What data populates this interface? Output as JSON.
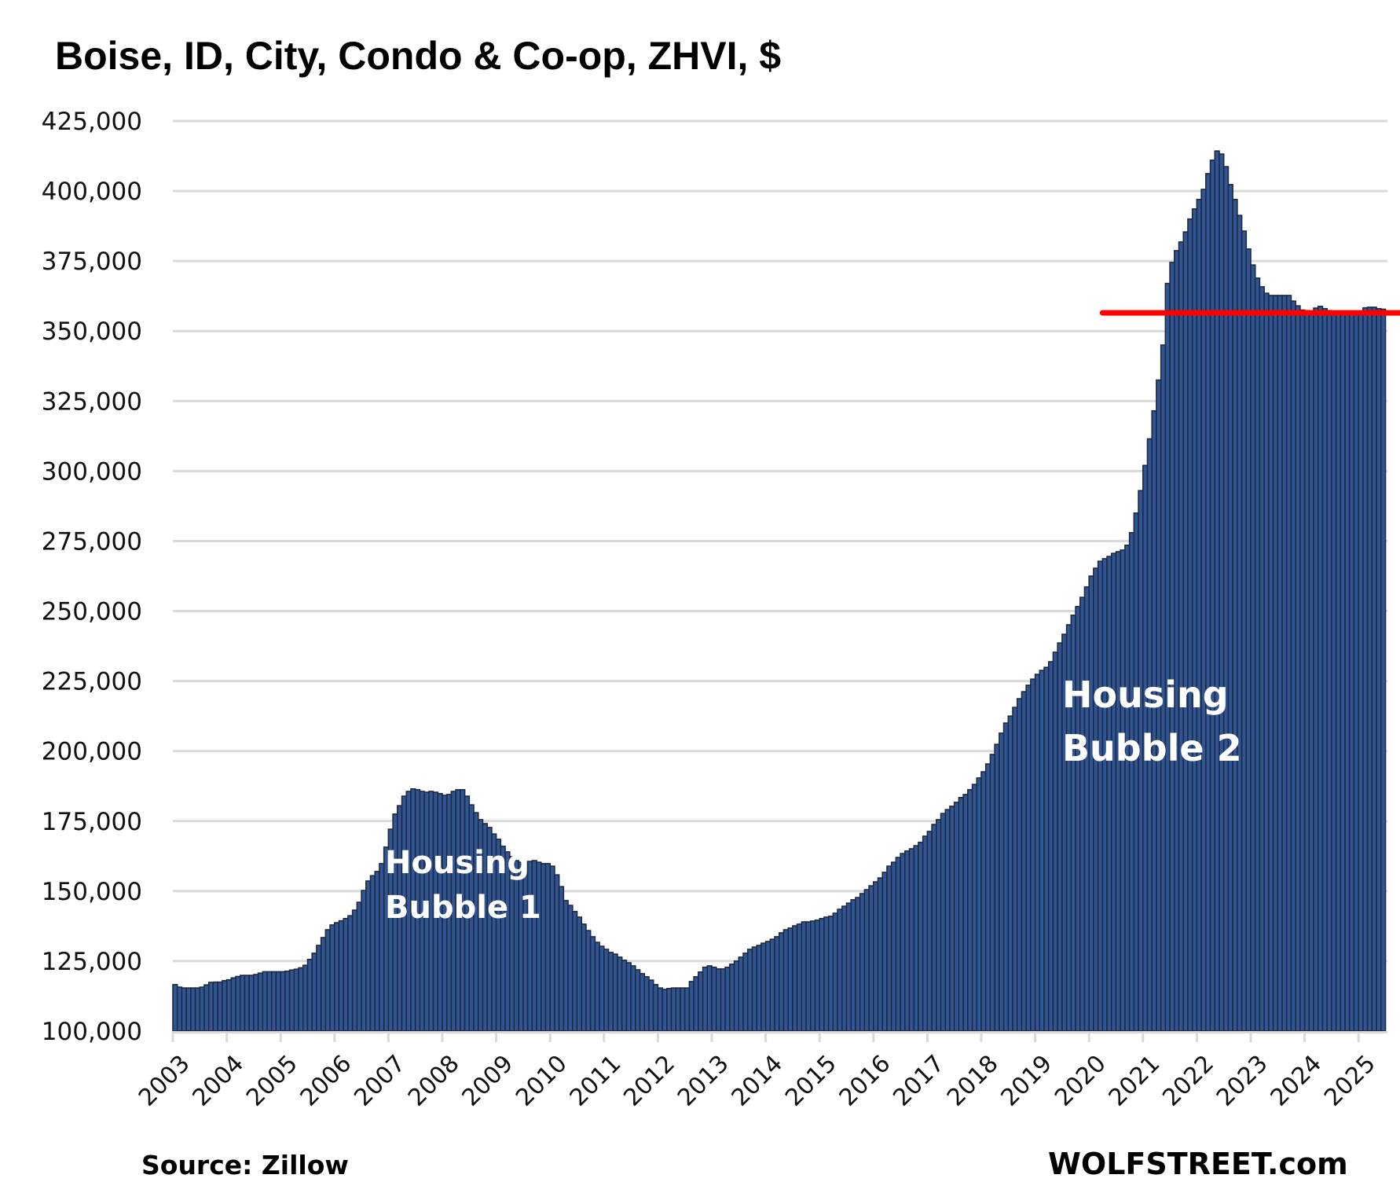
{
  "chart_data": {
    "type": "bar",
    "title": "Boise, ID, City, Condo & Co-op, ZHVI, $",
    "xlabel": "",
    "ylabel": "",
    "frequency": "monthly",
    "start_month": "2003-01",
    "end_month": "2025-06",
    "ylim": [
      100000,
      425000
    ],
    "yticks": [
      100000,
      125000,
      150000,
      175000,
      200000,
      225000,
      250000,
      275000,
      300000,
      325000,
      350000,
      375000,
      400000,
      425000
    ],
    "ytick_labels": [
      "100,000",
      "125,000",
      "150,000",
      "175,000",
      "200,000",
      "225,000",
      "250,000",
      "275,000",
      "300,000",
      "325,000",
      "350,000",
      "375,000",
      "400,000",
      "425,000"
    ],
    "xtick_labels": [
      "2003",
      "2004",
      "2005",
      "2006",
      "2007",
      "2008",
      "2009",
      "2010",
      "2011",
      "2012",
      "2013",
      "2014",
      "2015",
      "2016",
      "2017",
      "2018",
      "2019",
      "2020",
      "2021",
      "2022",
      "2023",
      "2024",
      "2025"
    ],
    "grid": true,
    "legend": "none",
    "series": [
      {
        "name": "ZHVI",
        "color": "#2f5597",
        "edge_color": "#1f2a3c",
        "values": [
          116600,
          115700,
          115400,
          115400,
          115400,
          115400,
          115700,
          116500,
          117400,
          117500,
          117500,
          118000,
          118300,
          119000,
          119500,
          119900,
          119900,
          119900,
          120200,
          120700,
          121200,
          121200,
          121200,
          121200,
          121200,
          121400,
          121800,
          122100,
          122600,
          123500,
          125600,
          127800,
          130600,
          133400,
          136200,
          137900,
          138700,
          139400,
          140200,
          141200,
          143200,
          146000,
          150200,
          153600,
          155500,
          157000,
          159800,
          165700,
          172100,
          177500,
          180500,
          183900,
          185600,
          186500,
          186200,
          185600,
          185300,
          185600,
          185300,
          184800,
          184200,
          184500,
          185600,
          186200,
          186200,
          183900,
          180800,
          178000,
          175500,
          174100,
          172700,
          170400,
          168500,
          166000,
          164000,
          162300,
          160900,
          160300,
          160300,
          160600,
          160900,
          160300,
          159800,
          159800,
          158900,
          155800,
          151600,
          146600,
          144900,
          142700,
          140700,
          138200,
          135900,
          133700,
          131700,
          130300,
          129200,
          128100,
          127500,
          126400,
          125300,
          124400,
          123300,
          121900,
          120500,
          119400,
          118200,
          116600,
          115400,
          114900,
          115200,
          115400,
          115400,
          115400,
          115400,
          117700,
          119400,
          121100,
          122800,
          123300,
          122800,
          122200,
          122200,
          122800,
          123900,
          125000,
          126400,
          127800,
          129200,
          130000,
          130600,
          131400,
          132000,
          132800,
          133700,
          135100,
          136200,
          136800,
          137600,
          138200,
          139000,
          139000,
          139300,
          139600,
          140200,
          140700,
          141000,
          142100,
          143500,
          144600,
          145700,
          146900,
          147700,
          149100,
          150500,
          151900,
          153300,
          154700,
          156700,
          158900,
          160300,
          162000,
          163400,
          164300,
          165100,
          166200,
          167400,
          169600,
          171300,
          173800,
          175500,
          177700,
          179100,
          180300,
          181700,
          183400,
          184500,
          186200,
          188100,
          190400,
          192600,
          195400,
          198800,
          202400,
          206400,
          210000,
          212500,
          215600,
          218700,
          221200,
          223500,
          225700,
          227400,
          228800,
          229900,
          231900,
          235300,
          238600,
          241700,
          245100,
          248500,
          251600,
          254900,
          258600,
          262500,
          265300,
          267800,
          268700,
          269500,
          270600,
          271200,
          271800,
          273500,
          278000,
          285000,
          293000,
          302000,
          311500,
          321500,
          332500,
          345000,
          367000,
          374500,
          378700,
          381800,
          385400,
          390000,
          393600,
          397000,
          400600,
          406200,
          411000,
          414300,
          413200,
          408700,
          402300,
          397000,
          391300,
          385700,
          379300,
          373600,
          368900,
          365800,
          363500,
          362700,
          362700,
          362700,
          362700,
          362700,
          360700,
          359000,
          357500,
          357300,
          357200,
          358200,
          358800,
          358000,
          357300,
          357000,
          357000,
          357000,
          357000,
          357000,
          357000,
          357000,
          358300,
          358500,
          358500,
          358000,
          357800
        ]
      }
    ],
    "reference_line": {
      "value": 356500,
      "start_month": "2020-04",
      "color": "#ff0000"
    },
    "annotations": [
      {
        "lines": [
          "Housing",
          "Bubble 1"
        ],
        "near": "2007"
      },
      {
        "lines": [
          "Housing",
          "Bubble 2"
        ],
        "near": "2019"
      }
    ],
    "source": "Source: Zillow",
    "credit": "WOLFSTREET.com",
    "gridline_color": "#d9d9d9"
  }
}
